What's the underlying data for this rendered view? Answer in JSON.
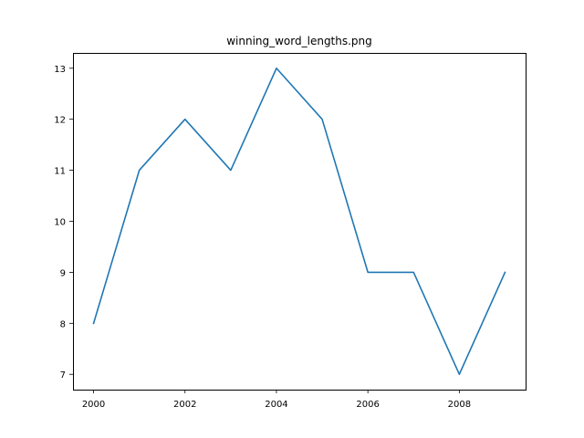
{
  "chart_data": {
    "type": "line",
    "title": "winning_word_lengths.png",
    "xlabel": "",
    "ylabel": "",
    "x": [
      2000,
      2001,
      2002,
      2003,
      2004,
      2005,
      2006,
      2007,
      2008,
      2009
    ],
    "series": [
      {
        "values": [
          8,
          11,
          12,
          11,
          13,
          12,
          9,
          9,
          7,
          9
        ],
        "color": "#1f77b4"
      }
    ],
    "xlim": [
      1999.55,
      2009.45
    ],
    "ylim": [
      6.7,
      13.3
    ],
    "xticks": [
      2000,
      2002,
      2004,
      2006,
      2008
    ],
    "yticks": [
      7,
      8,
      9,
      10,
      11,
      12,
      13
    ],
    "grid": false,
    "legend": "none"
  }
}
